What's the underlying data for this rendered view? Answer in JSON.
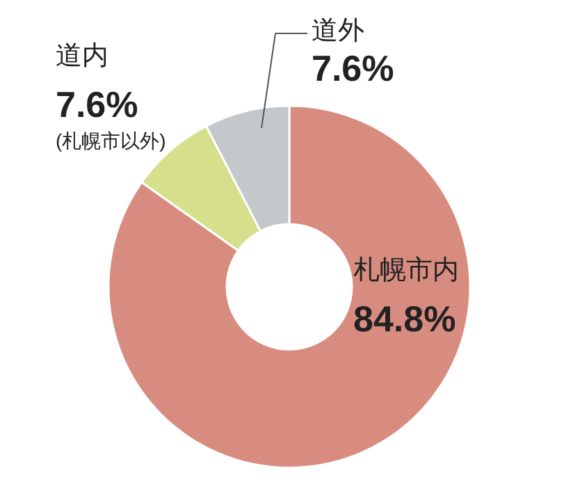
{
  "chart_data": {
    "type": "donut",
    "categories": [
      "札幌市内",
      "道内",
      "道外"
    ],
    "values": [
      84.8,
      7.6,
      7.6
    ],
    "colors": [
      "#d88c80",
      "#d6e08c",
      "#c4c8cb"
    ],
    "value_labels": [
      "84.8%",
      "7.6%",
      "7.6%"
    ],
    "annotations": [
      "(札幌市以外)"
    ]
  }
}
